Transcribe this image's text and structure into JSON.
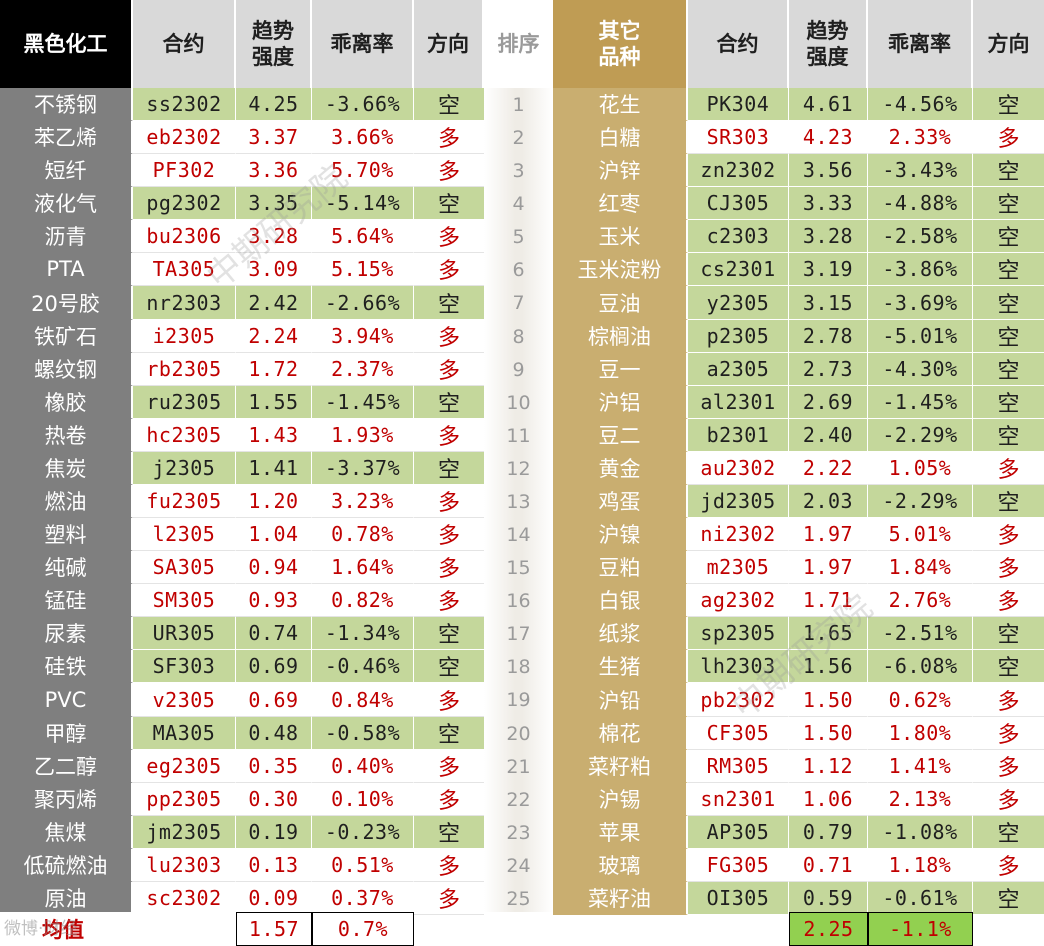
{
  "colors": {
    "black_header_bg": "#000000",
    "left_name_bg": "#7f7f7f",
    "header_bg": "#d9d9d9",
    "other_header_bg": "#bf9c54",
    "other_name_bg": "#c9ae70",
    "green_row": "#c4d79b",
    "white_row": "#ffffff",
    "red_text": "#c00000",
    "black_text": "#1f1f1f",
    "rank_band_bg": "#efece6",
    "avg_highlight": "#92d050"
  },
  "headers": {
    "left_category": "黑色化工",
    "contract": "合约",
    "trend_l1": "趋势",
    "trend_l2": "强度",
    "deviation": "乖离率",
    "direction": "方向",
    "rank": "排序",
    "right_category_l1": "其它",
    "right_category_l2": "品种"
  },
  "ranks": [
    "1",
    "2",
    "3",
    "4",
    "5",
    "6",
    "7",
    "8",
    "9",
    "10",
    "11",
    "12",
    "13",
    "14",
    "15",
    "16",
    "17",
    "18",
    "19",
    "20",
    "21",
    "22",
    "23",
    "24",
    "25"
  ],
  "left_rows": [
    {
      "name": "不锈钢",
      "contract": "ss2302",
      "strength": "4.25",
      "deviation": "-3.66%",
      "direction": "空",
      "short": true
    },
    {
      "name": "苯乙烯",
      "contract": "eb2302",
      "strength": "3.37",
      "deviation": "3.66%",
      "direction": "多",
      "short": false
    },
    {
      "name": "短纤",
      "contract": "PF302",
      "strength": "3.36",
      "deviation": "5.70%",
      "direction": "多",
      "short": false
    },
    {
      "name": "液化气",
      "contract": "pg2302",
      "strength": "3.35",
      "deviation": "-5.14%",
      "direction": "空",
      "short": true
    },
    {
      "name": "沥青",
      "contract": "bu2306",
      "strength": "3.28",
      "deviation": "5.64%",
      "direction": "多",
      "short": false
    },
    {
      "name": "PTA",
      "contract": "TA305",
      "strength": "3.09",
      "deviation": "5.15%",
      "direction": "多",
      "short": false
    },
    {
      "name": "20号胶",
      "contract": "nr2303",
      "strength": "2.42",
      "deviation": "-2.66%",
      "direction": "空",
      "short": true
    },
    {
      "name": "铁矿石",
      "contract": "i2305",
      "strength": "2.24",
      "deviation": "3.94%",
      "direction": "多",
      "short": false
    },
    {
      "name": "螺纹钢",
      "contract": "rb2305",
      "strength": "1.72",
      "deviation": "2.37%",
      "direction": "多",
      "short": false
    },
    {
      "name": "橡胶",
      "contract": "ru2305",
      "strength": "1.55",
      "deviation": "-1.45%",
      "direction": "空",
      "short": true
    },
    {
      "name": "热卷",
      "contract": "hc2305",
      "strength": "1.43",
      "deviation": "1.93%",
      "direction": "多",
      "short": false
    },
    {
      "name": "焦炭",
      "contract": "j2305",
      "strength": "1.41",
      "deviation": "-3.37%",
      "direction": "空",
      "short": true
    },
    {
      "name": "燃油",
      "contract": "fu2305",
      "strength": "1.20",
      "deviation": "3.23%",
      "direction": "多",
      "short": false
    },
    {
      "name": "塑料",
      "contract": "l2305",
      "strength": "1.04",
      "deviation": "0.78%",
      "direction": "多",
      "short": false
    },
    {
      "name": "纯碱",
      "contract": "SA305",
      "strength": "0.94",
      "deviation": "1.64%",
      "direction": "多",
      "short": false
    },
    {
      "name": "锰硅",
      "contract": "SM305",
      "strength": "0.93",
      "deviation": "0.82%",
      "direction": "多",
      "short": false
    },
    {
      "name": "尿素",
      "contract": "UR305",
      "strength": "0.74",
      "deviation": "-1.34%",
      "direction": "空",
      "short": true
    },
    {
      "name": "硅铁",
      "contract": "SF303",
      "strength": "0.69",
      "deviation": "-0.46%",
      "direction": "空",
      "short": true
    },
    {
      "name": "PVC",
      "contract": "v2305",
      "strength": "0.69",
      "deviation": "0.84%",
      "direction": "多",
      "short": false
    },
    {
      "name": "甲醇",
      "contract": "MA305",
      "strength": "0.48",
      "deviation": "-0.58%",
      "direction": "空",
      "short": true
    },
    {
      "name": "乙二醇",
      "contract": "eg2305",
      "strength": "0.35",
      "deviation": "0.40%",
      "direction": "多",
      "short": false
    },
    {
      "name": "聚丙烯",
      "contract": "pp2305",
      "strength": "0.30",
      "deviation": "0.10%",
      "direction": "多",
      "short": false
    },
    {
      "name": "焦煤",
      "contract": "jm2305",
      "strength": "0.19",
      "deviation": "-0.23%",
      "direction": "空",
      "short": true
    },
    {
      "name": "低硫燃油",
      "contract": "lu2303",
      "strength": "0.13",
      "deviation": "0.51%",
      "direction": "多",
      "short": false
    },
    {
      "name": "原油",
      "contract": "sc2302",
      "strength": "0.09",
      "deviation": "0.37%",
      "direction": "多",
      "short": false
    }
  ],
  "right_rows": [
    {
      "name": "花生",
      "contract": "PK304",
      "strength": "4.61",
      "deviation": "-4.56%",
      "direction": "空",
      "short": true
    },
    {
      "name": "白糖",
      "contract": "SR303",
      "strength": "4.23",
      "deviation": "2.33%",
      "direction": "多",
      "short": false
    },
    {
      "name": "沪锌",
      "contract": "zn2302",
      "strength": "3.56",
      "deviation": "-3.43%",
      "direction": "空",
      "short": true
    },
    {
      "name": "红枣",
      "contract": "CJ305",
      "strength": "3.33",
      "deviation": "-4.88%",
      "direction": "空",
      "short": true
    },
    {
      "name": "玉米",
      "contract": "c2303",
      "strength": "3.28",
      "deviation": "-2.58%",
      "direction": "空",
      "short": true
    },
    {
      "name": "玉米淀粉",
      "contract": "cs2301",
      "strength": "3.19",
      "deviation": "-3.86%",
      "direction": "空",
      "short": true
    },
    {
      "name": "豆油",
      "contract": "y2305",
      "strength": "3.15",
      "deviation": "-3.69%",
      "direction": "空",
      "short": true
    },
    {
      "name": "棕榈油",
      "contract": "p2305",
      "strength": "2.78",
      "deviation": "-5.01%",
      "direction": "空",
      "short": true
    },
    {
      "name": "豆一",
      "contract": "a2305",
      "strength": "2.73",
      "deviation": "-4.30%",
      "direction": "空",
      "short": true
    },
    {
      "name": "沪铝",
      "contract": "al2301",
      "strength": "2.69",
      "deviation": "-1.45%",
      "direction": "空",
      "short": true
    },
    {
      "name": "豆二",
      "contract": "b2301",
      "strength": "2.40",
      "deviation": "-2.29%",
      "direction": "空",
      "short": true
    },
    {
      "name": "黄金",
      "contract": "au2302",
      "strength": "2.22",
      "deviation": "1.05%",
      "direction": "多",
      "short": false
    },
    {
      "name": "鸡蛋",
      "contract": "jd2305",
      "strength": "2.03",
      "deviation": "-2.29%",
      "direction": "空",
      "short": true
    },
    {
      "name": "沪镍",
      "contract": "ni2302",
      "strength": "1.97",
      "deviation": "5.01%",
      "direction": "多",
      "short": false
    },
    {
      "name": "豆粕",
      "contract": "m2305",
      "strength": "1.97",
      "deviation": "1.84%",
      "direction": "多",
      "short": false
    },
    {
      "name": "白银",
      "contract": "ag2302",
      "strength": "1.71",
      "deviation": "2.76%",
      "direction": "多",
      "short": false
    },
    {
      "name": "纸浆",
      "contract": "sp2305",
      "strength": "1.65",
      "deviation": "-2.51%",
      "direction": "空",
      "short": true
    },
    {
      "name": "生猪",
      "contract": "lh2303",
      "strength": "1.56",
      "deviation": "-6.08%",
      "direction": "空",
      "short": true
    },
    {
      "name": "沪铅",
      "contract": "pb2302",
      "strength": "1.50",
      "deviation": "0.62%",
      "direction": "多",
      "short": false
    },
    {
      "name": "棉花",
      "contract": "CF305",
      "strength": "1.50",
      "deviation": "1.80%",
      "direction": "多",
      "short": false
    },
    {
      "name": "菜籽粕",
      "contract": "RM305",
      "strength": "1.12",
      "deviation": "1.41%",
      "direction": "多",
      "short": false
    },
    {
      "name": "沪锡",
      "contract": "sn2301",
      "strength": "1.06",
      "deviation": "2.13%",
      "direction": "多",
      "short": false
    },
    {
      "name": "苹果",
      "contract": "AP305",
      "strength": "0.79",
      "deviation": "-1.08%",
      "direction": "空",
      "short": true
    },
    {
      "name": "玻璃",
      "contract": "FG305",
      "strength": "0.71",
      "deviation": "1.18%",
      "direction": "多",
      "short": false
    },
    {
      "name": "菜籽油",
      "contract": "OI305",
      "strength": "0.59",
      "deviation": "-0.61%",
      "direction": "空",
      "short": true
    }
  ],
  "averages": {
    "label": "均值",
    "left_strength": "1.57",
    "left_deviation": "0.7%",
    "right_strength": "2.25",
    "right_deviation": "-1.1%"
  },
  "watermarks": [
    "中期研究院",
    "中期研究院"
  ],
  "footer_logo": "微博·财经"
}
